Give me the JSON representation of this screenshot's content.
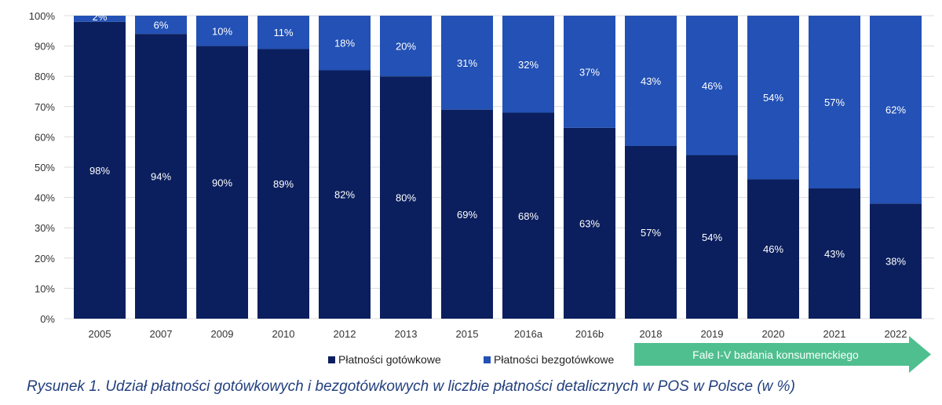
{
  "chart_data": {
    "type": "bar",
    "stacked": true,
    "categories": [
      "2005",
      "2007",
      "2009",
      "2010",
      "2012",
      "2013",
      "2015",
      "2016a",
      "2016b",
      "2018",
      "2019",
      "2020",
      "2021",
      "2022"
    ],
    "series": [
      {
        "name": "Płatności gotówkowe",
        "color": "#0b1f5e",
        "values": [
          98,
          94,
          90,
          89,
          82,
          80,
          69,
          68,
          63,
          57,
          54,
          46,
          43,
          38
        ]
      },
      {
        "name": "Płatności bezgotówkowe",
        "color": "#2351b5",
        "values": [
          2,
          6,
          10,
          11,
          18,
          20,
          31,
          32,
          37,
          43,
          46,
          54,
          57,
          62
        ]
      }
    ],
    "yticks": [
      "0%",
      "10%",
      "20%",
      "30%",
      "40%",
      "50%",
      "60%",
      "70%",
      "80%",
      "90%",
      "100%"
    ],
    "ylim": [
      0,
      100
    ],
    "grid": true,
    "legend": "bottom",
    "title": "",
    "xlabel": "",
    "ylabel": ""
  },
  "arrow_label": "Fale I-V badania konsumenckiego",
  "arrow_color": "#4fbf8f",
  "caption": "Rysunek 1. Udział płatności gotówkowych i bezgotówkowych w liczbie płatności detalicznych w POS w Polsce (w %)"
}
